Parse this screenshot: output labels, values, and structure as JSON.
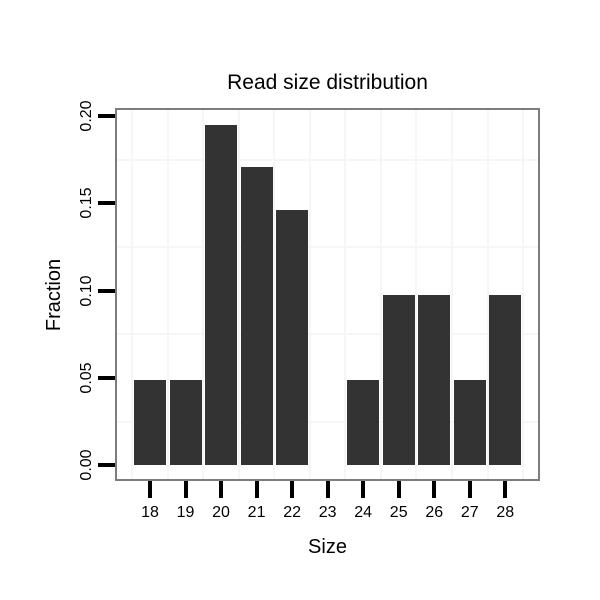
{
  "chart_data": {
    "type": "bar",
    "title": "Read size distribution",
    "xlabel": "Size",
    "ylabel": "Fraction",
    "categories": [
      "18",
      "19",
      "20",
      "21",
      "22",
      "23",
      "24",
      "25",
      "26",
      "27",
      "28"
    ],
    "values": [
      0.0488,
      0.0488,
      0.1951,
      0.1707,
      0.1463,
      0,
      0.0488,
      0.0976,
      0.0976,
      0.0488,
      0.0976
    ],
    "y_ticks": [
      "0.00",
      "0.05",
      "0.10",
      "0.15",
      "0.20"
    ],
    "y_tick_values": [
      0,
      0.05,
      0.1,
      0.15,
      0.2
    ],
    "ylim": [
      -0.0098,
      0.2049
    ],
    "bar_width_fraction": 0.9,
    "grid": "minor-only",
    "minor_y_values": [
      0.025,
      0.075,
      0.125,
      0.175
    ],
    "legend": "none",
    "colors": {
      "bar": "#333333",
      "panel_border": "#7d7d7d",
      "grid_minor": "#f6f6f6",
      "tick": "#000000",
      "text": "#000000",
      "background": "#ffffff"
    }
  }
}
